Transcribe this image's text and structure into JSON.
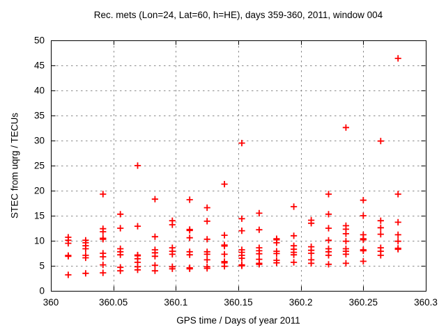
{
  "chart_data": {
    "type": "scatter",
    "title": "Rec. mets (Lon=24, Lat=60, h=HE), days 359-360, 2011, window 004",
    "xlabel": "GPS time / Days of year 2011",
    "ylabel": "STEC from uqrg / TECUs",
    "xlim": [
      360,
      360.3
    ],
    "ylim": [
      0,
      50
    ],
    "grid": true,
    "legend": "none",
    "marker": "plus",
    "colors": {
      "marker": "#ff0000",
      "grid": "#8a8a8a",
      "frame": "#000000",
      "background": "#ffffff"
    },
    "x_ticks": {
      "values": [
        360,
        360.05,
        360.1,
        360.15,
        360.2,
        360.25,
        360.3
      ],
      "labels": [
        "360",
        "360.05",
        "360.1",
        "360.15",
        "360.2",
        "360.25",
        "360.3"
      ]
    },
    "y_ticks": {
      "values": [
        0,
        5,
        10,
        15,
        20,
        25,
        30,
        35,
        40,
        45,
        50
      ],
      "labels": [
        "0",
        "5",
        "10",
        "15",
        "20",
        "25",
        "30",
        "35",
        "40",
        "45",
        "50"
      ]
    },
    "series": [
      {
        "name": "STEC",
        "points": [
          [
            360.0139,
            10.7
          ],
          [
            360.0139,
            10.1
          ],
          [
            360.0139,
            9.5
          ],
          [
            360.0139,
            7.05
          ],
          [
            360.0139,
            6.9
          ],
          [
            360.0139,
            3.2
          ],
          [
            360.0278,
            10.1
          ],
          [
            360.0278,
            9.6
          ],
          [
            360.0278,
            9.0
          ],
          [
            360.0278,
            8.4
          ],
          [
            360.0278,
            7.1
          ],
          [
            360.0278,
            6.6
          ],
          [
            360.0278,
            3.5
          ],
          [
            360.0417,
            19.3
          ],
          [
            360.0417,
            12.4
          ],
          [
            360.0417,
            11.8
          ],
          [
            360.0417,
            10.5
          ],
          [
            360.0417,
            10.3
          ],
          [
            360.0417,
            7.5
          ],
          [
            360.0417,
            6.8
          ],
          [
            360.0417,
            5.2
          ],
          [
            360.0417,
            3.6
          ],
          [
            360.0556,
            15.3
          ],
          [
            360.0556,
            12.5
          ],
          [
            360.0556,
            8.4
          ],
          [
            360.0556,
            7.8
          ],
          [
            360.0556,
            7.2
          ],
          [
            360.0556,
            4.7
          ],
          [
            360.0556,
            4.0
          ],
          [
            360.0694,
            25.0
          ],
          [
            360.0694,
            12.9
          ],
          [
            360.0694,
            7.15
          ],
          [
            360.0694,
            7.0
          ],
          [
            360.0694,
            6.4
          ],
          [
            360.0694,
            5.7
          ],
          [
            360.0694,
            4.8
          ],
          [
            360.0694,
            4.2
          ],
          [
            360.0833,
            18.3
          ],
          [
            360.0833,
            10.8
          ],
          [
            360.0833,
            8.2
          ],
          [
            360.0833,
            7.6
          ],
          [
            360.0833,
            6.9
          ],
          [
            360.0833,
            5.1
          ],
          [
            360.0833,
            4.0
          ],
          [
            360.0972,
            14.0
          ],
          [
            360.0972,
            13.2
          ],
          [
            360.0972,
            8.6
          ],
          [
            360.0972,
            7.9
          ],
          [
            360.0972,
            7.3
          ],
          [
            360.0972,
            4.8
          ],
          [
            360.0972,
            4.4
          ],
          [
            360.1111,
            18.2
          ],
          [
            360.1111,
            12.25
          ],
          [
            360.1111,
            12.05
          ],
          [
            360.1111,
            10.6
          ],
          [
            360.1111,
            7.8
          ],
          [
            360.1111,
            7.2
          ],
          [
            360.1111,
            4.6
          ],
          [
            360.1111,
            4.4
          ],
          [
            360.125,
            16.6
          ],
          [
            360.125,
            13.9
          ],
          [
            360.125,
            10.3
          ],
          [
            360.125,
            7.8
          ],
          [
            360.125,
            7.3
          ],
          [
            360.125,
            6.2
          ],
          [
            360.125,
            4.8
          ],
          [
            360.125,
            4.5
          ],
          [
            360.1389,
            21.3
          ],
          [
            360.1389,
            11.1
          ],
          [
            360.1389,
            9.15
          ],
          [
            360.1389,
            8.95
          ],
          [
            360.1389,
            7.3
          ],
          [
            360.1389,
            5.85
          ],
          [
            360.1389,
            5.6
          ],
          [
            360.1389,
            4.9
          ],
          [
            360.1528,
            29.5
          ],
          [
            360.1528,
            14.4
          ],
          [
            360.1528,
            12.0
          ],
          [
            360.1528,
            8.2
          ],
          [
            360.1528,
            7.7
          ],
          [
            360.1528,
            7.1
          ],
          [
            360.1528,
            6.5
          ],
          [
            360.1528,
            5.2
          ],
          [
            360.1528,
            5.0
          ],
          [
            360.1667,
            15.5
          ],
          [
            360.1667,
            12.2
          ],
          [
            360.1667,
            8.6
          ],
          [
            360.1667,
            8.0
          ],
          [
            360.1667,
            7.4
          ],
          [
            360.1667,
            6.3
          ],
          [
            360.1667,
            5.5
          ],
          [
            360.1667,
            5.3
          ],
          [
            360.1806,
            10.4
          ],
          [
            360.1806,
            10.2
          ],
          [
            360.1806,
            9.6
          ],
          [
            360.1806,
            7.9
          ],
          [
            360.1806,
            7.45
          ],
          [
            360.1806,
            6.1
          ],
          [
            360.1806,
            5.6
          ],
          [
            360.1944,
            16.8
          ],
          [
            360.1944,
            11.0
          ],
          [
            360.1944,
            9.0
          ],
          [
            360.1944,
            8.3
          ],
          [
            360.1944,
            7.7
          ],
          [
            360.1944,
            7.2
          ],
          [
            360.1944,
            5.7
          ],
          [
            360.2083,
            14.1
          ],
          [
            360.2083,
            13.5
          ],
          [
            360.2083,
            8.8
          ],
          [
            360.2083,
            8.1
          ],
          [
            360.2083,
            7.5
          ],
          [
            360.2083,
            6.2
          ],
          [
            360.2083,
            5.5
          ],
          [
            360.2222,
            19.3
          ],
          [
            360.2222,
            15.3
          ],
          [
            360.2222,
            12.5
          ],
          [
            360.2222,
            10.1
          ],
          [
            360.2222,
            8.4
          ],
          [
            360.2222,
            7.8
          ],
          [
            360.2222,
            7.1
          ],
          [
            360.2222,
            5.3
          ],
          [
            360.2361,
            32.6
          ],
          [
            360.2361,
            13.0
          ],
          [
            360.2361,
            12.3
          ],
          [
            360.2361,
            11.4
          ],
          [
            360.2361,
            9.9
          ],
          [
            360.2361,
            8.4
          ],
          [
            360.2361,
            7.9
          ],
          [
            360.2361,
            7.3
          ],
          [
            360.2361,
            5.5
          ],
          [
            360.25,
            18.1
          ],
          [
            360.25,
            15.0
          ],
          [
            360.25,
            11.2
          ],
          [
            360.25,
            10.4
          ],
          [
            360.25,
            10.2
          ],
          [
            360.25,
            8.2
          ],
          [
            360.25,
            8.0
          ],
          [
            360.25,
            5.9
          ],
          [
            360.2639,
            29.9
          ],
          [
            360.2639,
            14.0
          ],
          [
            360.2639,
            12.6
          ],
          [
            360.2639,
            11.3
          ],
          [
            360.2639,
            8.6
          ],
          [
            360.2639,
            7.9
          ],
          [
            360.2639,
            7.1
          ],
          [
            360.2778,
            46.4
          ],
          [
            360.2778,
            19.3
          ],
          [
            360.2778,
            13.7
          ],
          [
            360.2778,
            11.2
          ],
          [
            360.2778,
            9.9
          ],
          [
            360.2778,
            8.5
          ],
          [
            360.2778,
            8.3
          ]
        ]
      }
    ]
  }
}
